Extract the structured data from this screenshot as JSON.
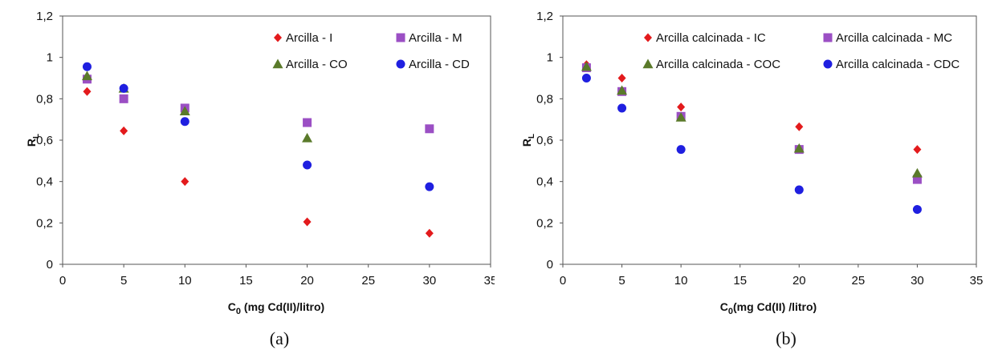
{
  "chart_data": [
    {
      "type": "scatter",
      "title": "",
      "caption": "(a)",
      "xlabel": "C",
      "xlabel_sub": "0",
      "xlabel_rest": " (mg Cd(II)/litro)",
      "ylabel": "R",
      "ylabel_sub": "L",
      "xlim": [
        0,
        35
      ],
      "ylim": [
        0,
        1.2
      ],
      "xticks": [
        "0",
        "5",
        "10",
        "15",
        "20",
        "25",
        "30",
        "35"
      ],
      "yticks": [
        "0",
        "0,2",
        "0,4",
        "0,6",
        "0,8",
        "1",
        "1,2"
      ],
      "grid": false,
      "legend_position": "top-right",
      "series": [
        {
          "name": "Arcilla - I",
          "marker": "diamond",
          "color": "#e31a1c",
          "x": [
            2,
            5,
            10,
            20,
            30
          ],
          "y": [
            0.835,
            0.645,
            0.4,
            0.205,
            0.15
          ]
        },
        {
          "name": "Arcilla - M",
          "marker": "square",
          "color": "#9b4fc4",
          "x": [
            2,
            5,
            10,
            20,
            30
          ],
          "y": [
            0.895,
            0.8,
            0.755,
            0.685,
            0.655
          ]
        },
        {
          "name": "Arcilla - CO",
          "marker": "triangle",
          "color": "#5a7a2a",
          "x": [
            2,
            5,
            10,
            20
          ],
          "y": [
            0.91,
            0.85,
            0.74,
            0.61
          ]
        },
        {
          "name": "Arcilla - CD",
          "marker": "circle",
          "color": "#1f1fe0",
          "x": [
            2,
            5,
            10,
            20,
            30
          ],
          "y": [
            0.955,
            0.85,
            0.69,
            0.48,
            0.375
          ]
        }
      ]
    },
    {
      "type": "scatter",
      "title": "",
      "caption": "(b)",
      "xlabel": "C",
      "xlabel_sub": "0",
      "xlabel_rest": "(mg Cd(II) /litro)",
      "ylabel": "R",
      "ylabel_sub": "L",
      "xlim": [
        0,
        35
      ],
      "ylim": [
        0,
        1.2
      ],
      "xticks": [
        "0",
        "5",
        "10",
        "15",
        "20",
        "25",
        "30",
        "35"
      ],
      "yticks": [
        "0",
        "0,2",
        "0,4",
        "0,6",
        "0,8",
        "1",
        "1,2"
      ],
      "grid": false,
      "legend_position": "top-right",
      "series": [
        {
          "name": "Arcilla calcinada - IC",
          "marker": "diamond",
          "color": "#e31a1c",
          "x": [
            2,
            5,
            10,
            20,
            30
          ],
          "y": [
            0.965,
            0.9,
            0.76,
            0.665,
            0.555
          ]
        },
        {
          "name": "Arcilla calcinada - MC",
          "marker": "square",
          "color": "#9b4fc4",
          "x": [
            2,
            5,
            10,
            20,
            30
          ],
          "y": [
            0.95,
            0.835,
            0.715,
            0.555,
            0.41
          ]
        },
        {
          "name": "Arcilla calcinada - COC",
          "marker": "triangle",
          "color": "#5a7a2a",
          "x": [
            2,
            5,
            10,
            20,
            30
          ],
          "y": [
            0.955,
            0.84,
            0.71,
            0.56,
            0.44
          ]
        },
        {
          "name": "Arcilla calcinada - CDC",
          "marker": "circle",
          "color": "#1f1fe0",
          "x": [
            2,
            5,
            10,
            20,
            30
          ],
          "y": [
            0.9,
            0.755,
            0.555,
            0.36,
            0.265
          ]
        }
      ]
    }
  ]
}
